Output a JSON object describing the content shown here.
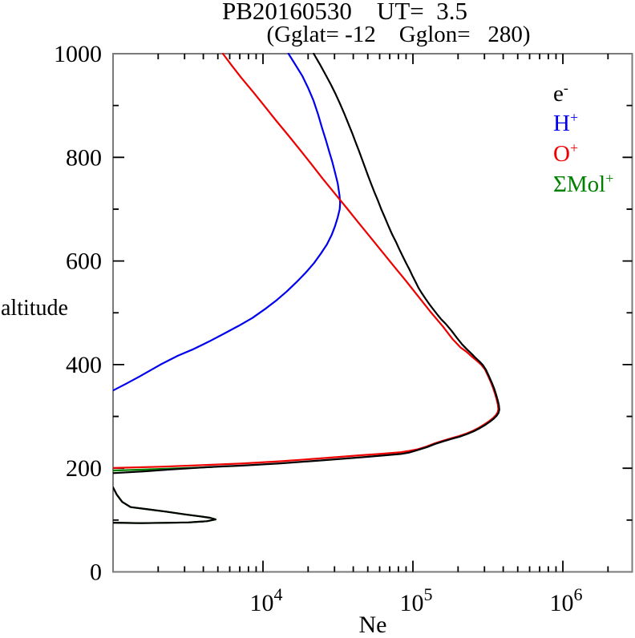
{
  "title_line1": "PB20160530    UT=  3.5",
  "title_line2": "(Gglat= -12    Gglon=   280)",
  "chart_data": {
    "type": "line",
    "title": "PB20160530    UT=  3.5",
    "subtitle": "(Gglat= -12    Gglon=   280)",
    "xlabel": "Ne",
    "ylabel": "altitude",
    "x_scale": "log",
    "xlim": [
      1000,
      2900000
    ],
    "ylim": [
      0,
      1000
    ],
    "axis_color": "#7a7a7a",
    "tick_color": "#000000",
    "x_major_ticks": [
      {
        "value": 10000,
        "exp": "4"
      },
      {
        "value": 100000,
        "exp": "5"
      },
      {
        "value": 1000000,
        "exp": "6"
      }
    ],
    "x_minor_ticks": [
      2000,
      3000,
      4000,
      5000,
      6000,
      7000,
      8000,
      9000,
      20000,
      30000,
      40000,
      50000,
      60000,
      70000,
      80000,
      90000,
      200000,
      300000,
      400000,
      500000,
      600000,
      700000,
      800000,
      900000,
      2000000
    ],
    "y_major_ticks": [
      200,
      400,
      600,
      800
    ],
    "y_minor_ticks": [
      100,
      300,
      500,
      700,
      900
    ],
    "y_tick_labels": [
      {
        "label": "0",
        "value": 0
      },
      {
        "label": "200",
        "value": 200
      },
      {
        "label": "400",
        "value": 400
      },
      {
        "label": "600",
        "value": 600
      },
      {
        "label": "800",
        "value": 800
      },
      {
        "label": "1000",
        "value": 1000
      }
    ],
    "legend": [
      {
        "main": "e",
        "sup": "-",
        "color": "#000000"
      },
      {
        "main": "H",
        "sup": "+",
        "color": "#0000ee"
      },
      {
        "main": "O",
        "sup": "+",
        "color": "#ee0000"
      },
      {
        "main": "ΣMol",
        "sup": "+",
        "color": "#008000"
      }
    ],
    "series": [
      {
        "name": "e-",
        "color": "#000000",
        "z": 3,
        "segments": [
          [
            [
              1000,
              95
            ],
            [
              1190,
              94.5
            ],
            [
              1520,
              94
            ],
            [
              2200,
              94.7
            ],
            [
              3180,
              95.4
            ],
            [
              4220,
              97.7
            ],
            [
              4830,
              101.3
            ],
            [
              4430,
              104.4
            ],
            [
              3830,
              107
            ],
            [
              2990,
              111
            ],
            [
              2250,
              116.3
            ],
            [
              1720,
              120.6
            ],
            [
              1310,
              125
            ],
            [
              1150,
              135
            ],
            [
              1060,
              149
            ],
            [
              1000,
              163
            ]
          ],
          [
            [
              1000,
              190.5
            ],
            [
              1600,
              194
            ],
            [
              2400,
              197.5
            ],
            [
              3300,
              200
            ],
            [
              4200,
              202
            ],
            [
              5500,
              203.5
            ],
            [
              7080,
              205
            ],
            [
              13100,
              209.5
            ],
            [
              24200,
              215
            ],
            [
              44800,
              221
            ],
            [
              62500,
              224.5
            ],
            [
              82900,
              227.5
            ],
            [
              95000,
              230.5
            ],
            [
              110000,
              236
            ],
            [
              125000,
              241
            ],
            [
              141000,
              247
            ],
            [
              160000,
              252
            ],
            [
              180000,
              256.5
            ],
            [
              205000,
              261
            ],
            [
              230000,
              266
            ],
            [
              255000,
              271.5
            ],
            [
              280000,
              277.5
            ],
            [
              305000,
              284
            ],
            [
              327000,
              290
            ],
            [
              347000,
              296
            ],
            [
              362000,
              301.5
            ],
            [
              372000,
              306.5
            ],
            [
              377000,
              313
            ],
            [
              374000,
              322
            ],
            [
              368000,
              331
            ],
            [
              359000,
              342
            ],
            [
              348000,
              354
            ],
            [
              335000,
              366
            ],
            [
              321000,
              378
            ],
            [
              307000,
              390
            ],
            [
              293000,
              399
            ],
            [
              278000,
              406
            ],
            [
              262000,
              413
            ],
            [
              246000,
              421
            ],
            [
              230000,
              429
            ],
            [
              213000,
              439
            ],
            [
              196000,
              452
            ],
            [
              180000,
              466
            ],
            [
              165000,
              479
            ],
            [
              155000,
              487
            ],
            [
              147000,
              495
            ],
            [
              138000,
              505
            ],
            [
              130000,
              515
            ],
            [
              122000,
              526
            ],
            [
              115000,
              537
            ],
            [
              109000,
              548
            ],
            [
              104000,
              560
            ],
            [
              99000,
              572
            ],
            [
              95000,
              583
            ],
            [
              90000,
              596
            ],
            [
              85500,
              609
            ],
            [
              81000,
              623
            ],
            [
              77000,
              637
            ],
            [
              72500,
              652
            ],
            [
              68500,
              668
            ],
            [
              65000,
              684
            ],
            [
              61500,
              700
            ],
            [
              58500,
              716
            ],
            [
              55500,
              732
            ],
            [
              52800,
              748
            ],
            [
              50300,
              764
            ],
            [
              48000,
              780
            ],
            [
              45800,
              796
            ],
            [
              43700,
              812
            ],
            [
              41500,
              829
            ],
            [
              39300,
              847
            ],
            [
              37100,
              865
            ],
            [
              34900,
              884
            ],
            [
              32700,
              903
            ],
            [
              30500,
              922
            ],
            [
              28300,
              941
            ],
            [
              26100,
              960
            ],
            [
              23900,
              980
            ],
            [
              21800,
              1000
            ]
          ]
        ]
      },
      {
        "name": "H+",
        "color": "#0000ee",
        "z": 1,
        "segments": [
          [
            [
              1000,
              350
            ],
            [
              1220,
              363
            ],
            [
              1500,
              377
            ],
            [
              2070,
              400
            ],
            [
              2700,
              417
            ],
            [
              3380,
              429
            ],
            [
              4400,
              445
            ],
            [
              5520,
              460
            ],
            [
              6900,
              475
            ],
            [
              8500,
              490
            ],
            [
              10300,
              507
            ],
            [
              12300,
              524
            ],
            [
              14400,
              541
            ],
            [
              16700,
              559
            ],
            [
              19200,
              577
            ],
            [
              21900,
              596
            ],
            [
              24300,
              614
            ],
            [
              26700,
              632
            ],
            [
              28700,
              650
            ],
            [
              30200,
              667
            ],
            [
              31500,
              684
            ],
            [
              32500,
              700
            ],
            [
              32700,
              712
            ],
            [
              32400,
              726
            ],
            [
              31500,
              750
            ],
            [
              30200,
              771
            ],
            [
              29000,
              791
            ],
            [
              27700,
              810
            ],
            [
              26300,
              833
            ],
            [
              24800,
              856
            ],
            [
              23300,
              883
            ],
            [
              21700,
              910
            ],
            [
              20000,
              934
            ],
            [
              18300,
              957
            ],
            [
              16500,
              978
            ],
            [
              14800,
              1000
            ]
          ]
        ]
      },
      {
        "name": "O+",
        "color": "#ee0000",
        "z": 2,
        "segments": [
          [
            [
              1000,
              200.5
            ],
            [
              2070,
              203
            ],
            [
              3600,
              205.5
            ],
            [
              7080,
              209
            ],
            [
              13100,
              213.5
            ],
            [
              24200,
              219
            ],
            [
              44800,
              225
            ],
            [
              62500,
              228
            ],
            [
              82900,
              231
            ],
            [
              95000,
              233.5
            ],
            [
              108000,
              236.8
            ],
            [
              123000,
              241.8
            ],
            [
              139000,
              247.8
            ],
            [
              157500,
              252.8
            ],
            [
              177000,
              257.3
            ],
            [
              202000,
              261.8
            ],
            [
              226500,
              266.8
            ],
            [
              251000,
              272.3
            ],
            [
              276000,
              278.3
            ],
            [
              300000,
              284.8
            ],
            [
              322000,
              290.8
            ],
            [
              342000,
              296.8
            ],
            [
              356500,
              302.3
            ],
            [
              366500,
              307.3
            ],
            [
              371500,
              313.8
            ],
            [
              368500,
              322.8
            ],
            [
              362500,
              331.8
            ],
            [
              353500,
              342.8
            ],
            [
              342500,
              354.8
            ],
            [
              330000,
              366.8
            ],
            [
              316000,
              378.8
            ],
            [
              302000,
              390.8
            ],
            [
              285000,
              400
            ],
            [
              265000,
              408
            ],
            [
              246000,
              416
            ],
            [
              227000,
              425
            ],
            [
              208000,
              433
            ],
            [
              183000,
              450
            ],
            [
              158000,
              474
            ],
            [
              131000,
              502
            ],
            [
              107000,
              534
            ],
            [
              88500,
              564
            ],
            [
              73700,
              592
            ],
            [
              61500,
              620
            ],
            [
              51600,
              647
            ],
            [
              43000,
              675
            ],
            [
              36000,
              703
            ],
            [
              30000,
              731
            ],
            [
              25000,
              759
            ],
            [
              21000,
              787
            ],
            [
              17700,
              814
            ],
            [
              14700,
              843
            ],
            [
              12300,
              870
            ],
            [
              10300,
              898
            ],
            [
              8600,
              926
            ],
            [
              7200,
              953
            ],
            [
              6200,
              977
            ],
            [
              5400,
              1000
            ]
          ]
        ]
      },
      {
        "name": "Mol+",
        "color": "#008000",
        "z": 0,
        "segments": [
          [
            [
              1000,
              95
            ],
            [
              1190,
              94.5
            ],
            [
              1520,
              94
            ],
            [
              2200,
              94.7
            ],
            [
              3180,
              95.4
            ],
            [
              4220,
              97.7
            ],
            [
              4830,
              101.3
            ],
            [
              4430,
              104.4
            ],
            [
              3830,
              107
            ],
            [
              2990,
              111
            ],
            [
              2250,
              116.3
            ],
            [
              1720,
              120.6
            ],
            [
              1310,
              125
            ],
            [
              1150,
              135
            ],
            [
              1060,
              149
            ],
            [
              1000,
              163
            ]
          ],
          [
            [
              1000,
              195.5
            ],
            [
              1800,
              198
            ],
            [
              2800,
              200
            ],
            [
              3800,
              201.3
            ],
            [
              4600,
              202.3
            ]
          ]
        ]
      }
    ]
  }
}
